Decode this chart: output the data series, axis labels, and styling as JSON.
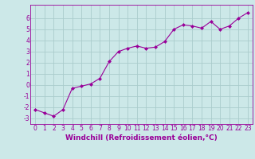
{
  "x": [
    0,
    1,
    2,
    3,
    4,
    5,
    6,
    7,
    8,
    9,
    10,
    11,
    12,
    13,
    14,
    15,
    16,
    17,
    18,
    19,
    20,
    21,
    22,
    23
  ],
  "y": [
    -2.2,
    -2.5,
    -2.8,
    -2.2,
    -0.3,
    -0.1,
    0.1,
    0.6,
    2.1,
    3.0,
    3.3,
    3.5,
    3.3,
    3.4,
    3.9,
    5.0,
    5.4,
    5.3,
    5.1,
    5.7,
    5.0,
    5.3,
    6.0,
    6.5
  ],
  "line_color": "#990099",
  "marker": "D",
  "marker_size": 2.0,
  "bg_color": "#cce8e8",
  "grid_color": "#aacccc",
  "xlabel": "Windchill (Refroidissement éolien,°C)",
  "xlim_min": -0.5,
  "xlim_max": 23.5,
  "ylim_min": -3.5,
  "ylim_max": 7.2,
  "yticks": [
    -3,
    -2,
    -1,
    0,
    1,
    2,
    3,
    4,
    5,
    6
  ],
  "xticks": [
    0,
    1,
    2,
    3,
    4,
    5,
    6,
    7,
    8,
    9,
    10,
    11,
    12,
    13,
    14,
    15,
    16,
    17,
    18,
    19,
    20,
    21,
    22,
    23
  ],
  "tick_color": "#990099",
  "label_color": "#990099",
  "font_size": 5.5,
  "xlabel_fontsize": 6.5,
  "linewidth": 0.8
}
